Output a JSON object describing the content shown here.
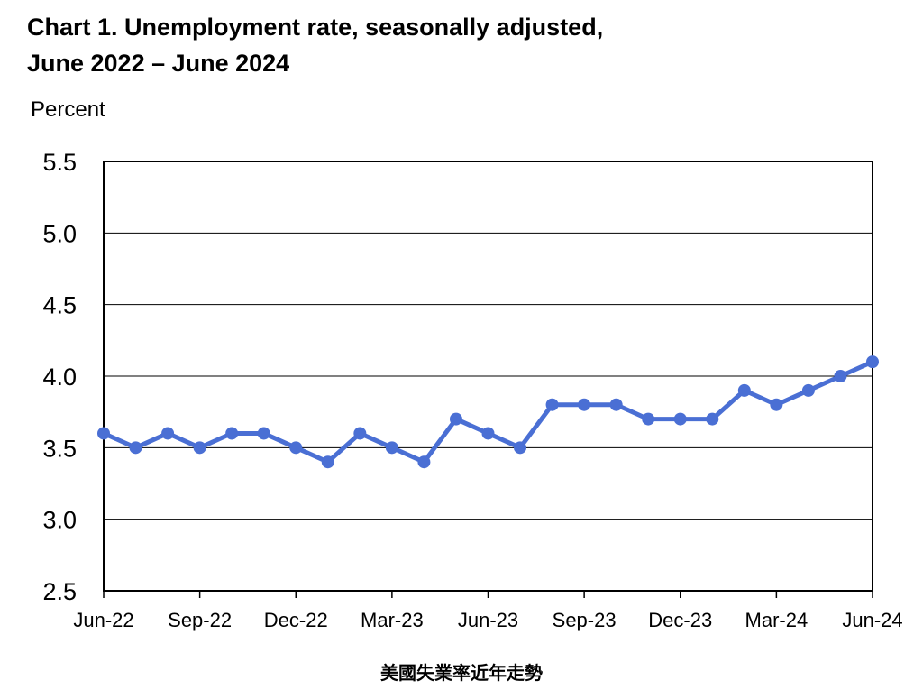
{
  "chart_data": {
    "type": "line",
    "title_line1": "Chart 1. Unemployment rate, seasonally adjusted,",
    "title_line2": "June 2022 – June 2024",
    "ylabel": "Percent",
    "caption": "美國失業率近年走勢",
    "ylim": [
      2.5,
      5.5
    ],
    "yticks": [
      "5.5",
      "5.0",
      "4.5",
      "4.0",
      "3.5",
      "3.0",
      "2.5"
    ],
    "ytick_values": [
      5.5,
      5.0,
      4.5,
      4.0,
      3.5,
      3.0,
      2.5
    ],
    "xtick_labels": [
      "Jun-22",
      "Sep-22",
      "Dec-22",
      "Mar-23",
      "Jun-23",
      "Sep-23",
      "Dec-23",
      "Mar-24",
      "Jun-24"
    ],
    "grid": true,
    "line_color": "#4a6fd4",
    "series": [
      {
        "months": [
          "Jun-22",
          "Jul-22",
          "Aug-22",
          "Sep-22",
          "Oct-22",
          "Nov-22",
          "Dec-22",
          "Jan-23",
          "Feb-23",
          "Mar-23",
          "Apr-23",
          "May-23",
          "Jun-23",
          "Jul-23",
          "Aug-23",
          "Sep-23",
          "Oct-23",
          "Nov-23",
          "Dec-23",
          "Jan-24",
          "Feb-24",
          "Mar-24",
          "Apr-24",
          "May-24",
          "Jun-24"
        ],
        "values": [
          3.6,
          3.5,
          3.6,
          3.5,
          3.6,
          3.6,
          3.5,
          3.4,
          3.6,
          3.5,
          3.4,
          3.7,
          3.6,
          3.5,
          3.8,
          3.8,
          3.8,
          3.7,
          3.7,
          3.7,
          3.9,
          3.8,
          3.9,
          4.0,
          4.1
        ]
      }
    ]
  }
}
